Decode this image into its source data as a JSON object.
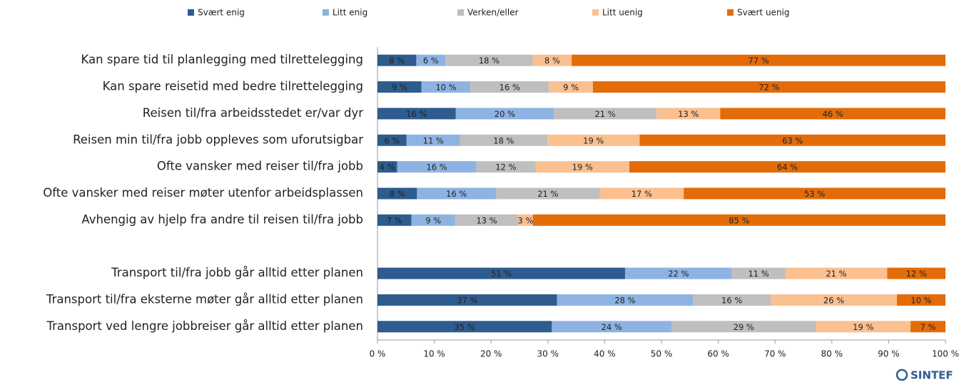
{
  "chart_data": {
    "type": "bar",
    "orientation": "horizontal",
    "stacking": "percent",
    "categories": [
      "Kan spare tid til planlegging med tilrettelegging",
      "Kan spare reisetid med bedre tilrettelegging",
      "Reisen til/fra arbeidsstedet er/var dyr",
      "Reisen min til/fra jobb oppleves som uforutsigbar",
      "Ofte vansker med reiser til/fra jobb",
      "Ofte vansker med reiser møter utenfor arbeidsplassen",
      "Avhengig av hjelp fra andre til reisen til/fra jobb",
      null,
      "Transport til/fra jobb går alltid etter planen",
      "Transport til/fra eksterne møter går alltid etter planen",
      "Transport ved lengre jobbreiser går alltid etter planen"
    ],
    "series": [
      {
        "name": "Svært enig",
        "color": "#2e5c8e",
        "values": [
          8,
          9,
          16,
          6,
          4,
          8,
          7,
          null,
          51,
          37,
          35
        ],
        "value_labels": [
          "8 %",
          "9 %",
          "16 %",
          "6 %",
          "4 %",
          "8 %",
          "7 %",
          null,
          "51 %",
          "37 %",
          "35 %"
        ]
      },
      {
        "name": "Litt enig",
        "color": "#8db3e2",
        "values": [
          6,
          10,
          20,
          11,
          16,
          16,
          9,
          null,
          22,
          28,
          24
        ],
        "value_labels": [
          "6 %",
          "10 %",
          "20 %",
          "11 %",
          "16 %",
          "16 %",
          "9 %",
          null,
          "22 %",
          "28 %",
          "24 %"
        ]
      },
      {
        "name": "Verken/eller",
        "color": "#bfbfbf",
        "values": [
          18,
          16,
          21,
          18,
          12,
          21,
          13,
          null,
          11,
          16,
          29
        ],
        "value_labels": [
          "18 %",
          "16 %",
          "21 %",
          "18 %",
          "12 %",
          "21 %",
          "13 %",
          null,
          "11 %",
          "16 %",
          "29 %"
        ]
      },
      {
        "name": "Litt uenig",
        "color": "#fac090",
        "values": [
          8,
          9,
          13,
          19,
          19,
          17,
          3,
          null,
          21,
          26,
          19
        ],
        "value_labels": [
          "8 %",
          "9 %",
          "13 %",
          "19 %",
          "19 %",
          "17 %",
          "3 %",
          null,
          "21 %",
          "26 %",
          "19 %"
        ]
      },
      {
        "name": "Svært uenig",
        "color": "#e36c09",
        "values": [
          77,
          72,
          46,
          63,
          64,
          53,
          85,
          null,
          12,
          10,
          7
        ],
        "value_labels": [
          "77 %",
          "72 %",
          "46 %",
          "63 %",
          "64 %",
          "53 %",
          "85 %",
          null,
          "12 %",
          "10 %",
          "7 %"
        ]
      }
    ],
    "xlim": [
      0,
      100
    ],
    "xticks": [
      {
        "value": 0,
        "label": "0 %"
      },
      {
        "value": 10,
        "label": "10 %"
      },
      {
        "value": 20,
        "label": "20 %"
      },
      {
        "value": 30,
        "label": "30 %"
      },
      {
        "value": 40,
        "label": "40 %"
      },
      {
        "value": 50,
        "label": "50 %"
      },
      {
        "value": 60,
        "label": "60 %"
      },
      {
        "value": 70,
        "label": "70 %"
      },
      {
        "value": 80,
        "label": "80 %"
      },
      {
        "value": 90,
        "label": "90 %"
      },
      {
        "value": 100,
        "label": "100 %"
      }
    ],
    "legend": "top",
    "logo": "SINTEF"
  }
}
